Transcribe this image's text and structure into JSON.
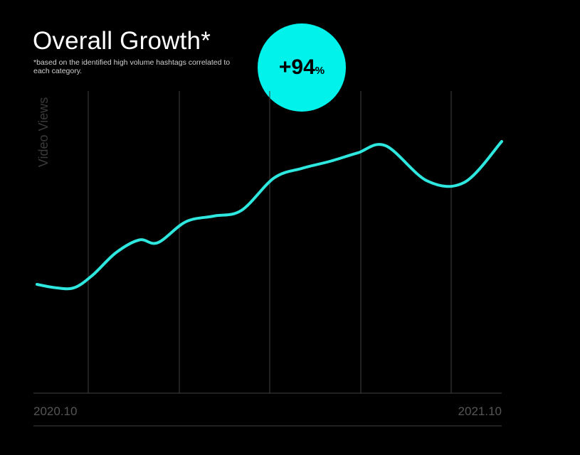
{
  "header": {
    "title": "Overall Growth*",
    "footnote": "*based on the identified high volume hashtags correlated to each category."
  },
  "badge": {
    "value": "+94",
    "unit": "%"
  },
  "colors": {
    "background": "#000000",
    "accent": "#00f2ea",
    "line": "#2ee8e0",
    "grid": "#3f3f3f",
    "axis_text": "#555555"
  },
  "chart_data": {
    "type": "line",
    "title": "Overall Growth*",
    "ylabel": "Video Views",
    "xlabel": "",
    "x_tick_labels": [
      "2020.10",
      "2021.10"
    ],
    "x_range": [
      0,
      1
    ],
    "ylim": [
      0,
      100
    ],
    "grid": "vertical",
    "x": [
      0.0,
      0.04,
      0.08,
      0.12,
      0.17,
      0.22,
      0.26,
      0.32,
      0.38,
      0.44,
      0.51,
      0.57,
      0.63,
      0.69,
      0.75,
      0.84,
      0.92,
      1.0
    ],
    "y": [
      36.0,
      34.9,
      34.9,
      39.1,
      46.5,
      50.7,
      49.8,
      56.7,
      58.6,
      60.5,
      71.2,
      74.4,
      76.7,
      79.5,
      81.9,
      70.2,
      69.8,
      83.3
    ]
  }
}
